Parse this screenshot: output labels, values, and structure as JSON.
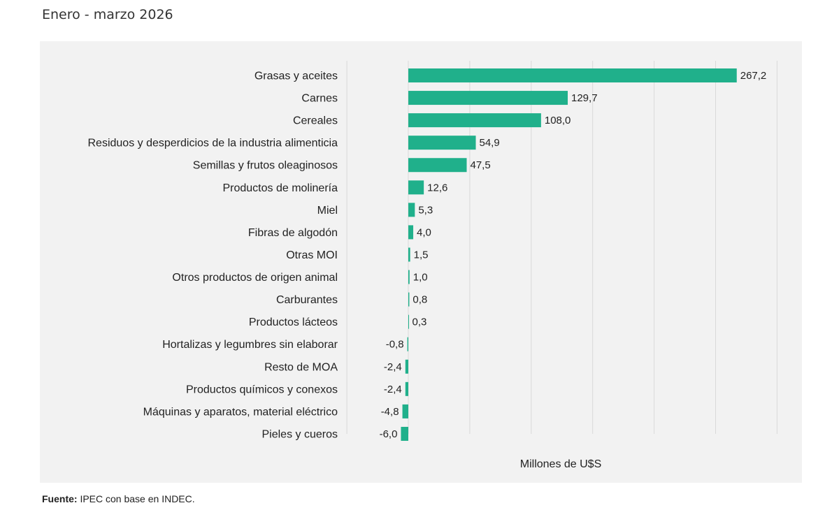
{
  "header": {
    "title": "Enero - marzo 2026"
  },
  "footer": {
    "source_label": "Fuente:",
    "source_text": " IPEC con base en INDEC."
  },
  "chart_data": {
    "type": "bar",
    "orientation": "horizontal",
    "title": "",
    "xlabel": "Millones de U$S",
    "ylabel": "",
    "xlim": [
      -10,
      290
    ],
    "grid": true,
    "bar_color": "#20b08b",
    "categories": [
      "Grasas y aceites",
      "Carnes",
      "Cereales",
      "Residuos y desperdicios de la industria alimenticia",
      "Semillas y frutos oleaginosos",
      "Productos de molinería",
      "Miel",
      "Fibras de algodón",
      "Otras MOI",
      "Otros productos de origen animal",
      "Carburantes",
      "Productos lácteos",
      "Hortalizas y legumbres sin elaborar",
      "Resto de MOA",
      "Productos químicos y conexos",
      "Máquinas y aparatos, material eléctrico",
      "Pieles y cueros"
    ],
    "values": [
      267.2,
      129.7,
      108.0,
      54.9,
      47.5,
      12.6,
      5.3,
      4.0,
      1.5,
      1.0,
      0.8,
      0.3,
      -0.8,
      -2.4,
      -2.4,
      -4.8,
      -6.0
    ],
    "data_labels": [
      "267,2",
      "129,7",
      "108,0",
      "54,9",
      "47,5",
      "12,6",
      "5,3",
      "4,0",
      "1,5",
      "1,0",
      "0,8",
      "0,3",
      "-0,8",
      "-2,4",
      "-2,4",
      "-4,8",
      "-6,0"
    ]
  }
}
